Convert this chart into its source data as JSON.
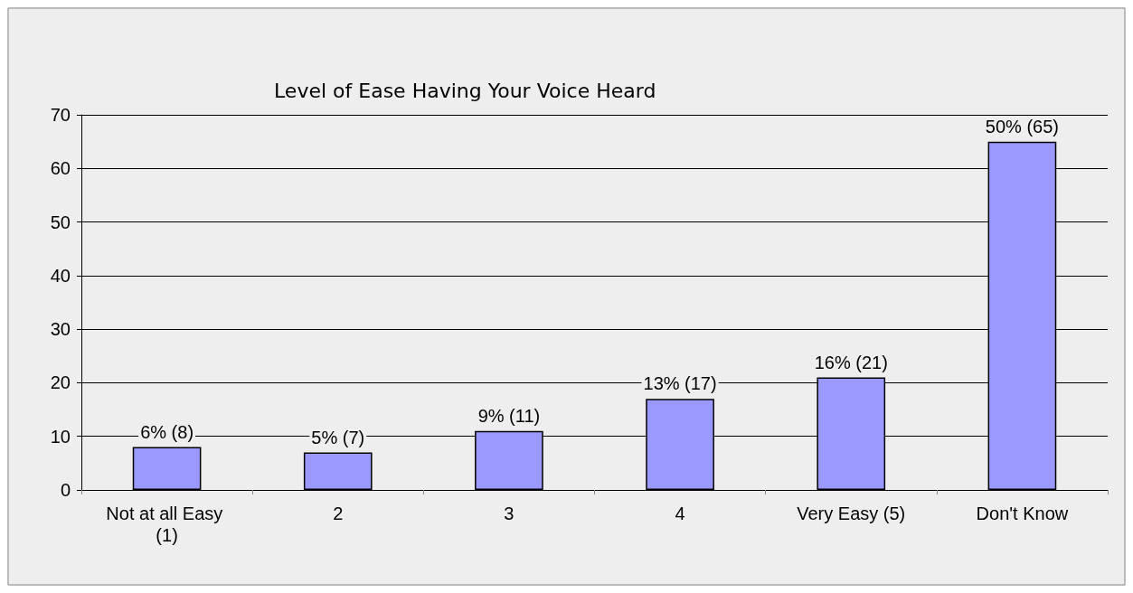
{
  "chart_data": {
    "type": "bar",
    "title": "Level of Ease Having Your Voice Heard",
    "categories": [
      "Not at all Easy (1)",
      "2",
      "3",
      "4",
      "Very Easy (5)",
      "Don't Know"
    ],
    "values": [
      8,
      7,
      11,
      17,
      21,
      65
    ],
    "value_labels": [
      "6% (8)",
      "5% (7)",
      "9% (11)",
      "13% (17)",
      "16% (21)",
      "50% (65)"
    ],
    "color": "#9999ff",
    "ylim": [
      0,
      70
    ],
    "yticks": [
      0,
      10,
      20,
      30,
      40,
      50,
      60,
      70
    ],
    "grid": "y"
  }
}
